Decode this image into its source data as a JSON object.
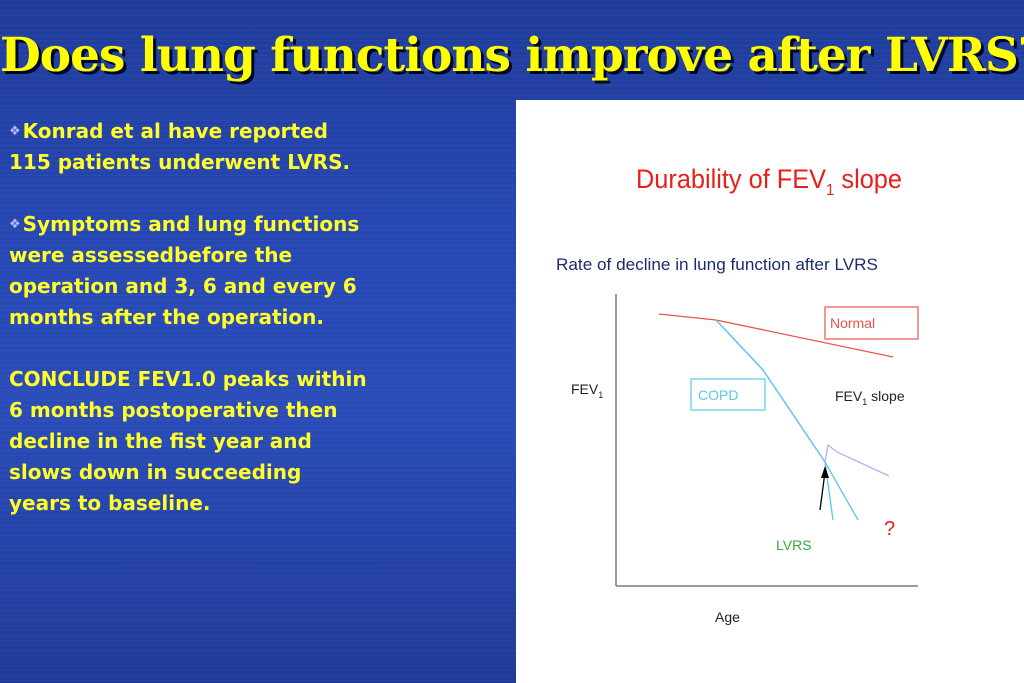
{
  "slide": {
    "title": "Does lung functions improve after LVRS?",
    "colors": {
      "title": "#ffff00",
      "text": "#ffff2a",
      "background": "#2446ad"
    },
    "paragraphs": [
      {
        "bullet_icon": "diamond-bullet-icon",
        "lines": [
          "Konrad et al have reported",
          "115 patients  underwent LVRS."
        ]
      },
      {
        "bullet_icon": "diamond-bullet-icon",
        "lines": [
          "Symptoms and lung functions",
          "were assessedbefore the",
          "operation and 3, 6 and every 6",
          "months after the operation."
        ]
      },
      {
        "bullet_icon": null,
        "lines": [
          "CONCLUDE FEV1.0 peaks within",
          "6 months postoperative then",
          "decline in the fist year and",
          "slows down in succeeding",
          "years to baseline."
        ]
      }
    ]
  },
  "figure": {
    "title": "Durability of FEV",
    "title_subscript": "1",
    "title_suffix": " slope",
    "subtitle": "Rate of decline in lung function after LVRS",
    "y_label": "FEV",
    "y_label_subscript": "1",
    "x_label": "Age",
    "labels": {
      "normal": "Normal",
      "copd": "COPD",
      "fev_slope": "FEV",
      "fev_slope_subscript": "1",
      "fev_slope_suffix": " slope",
      "lvrs": "LVRS",
      "question": "?"
    },
    "colors": {
      "title": "#e8201c",
      "subtitle": "#1c2a6e",
      "normal": "#e8544c",
      "copd": "#5bc8e8",
      "after_surgery": "#c8a8e8",
      "lvrs": "#3aa83a",
      "question": "#e8201c",
      "axis": "#7a7a7a"
    }
  }
}
